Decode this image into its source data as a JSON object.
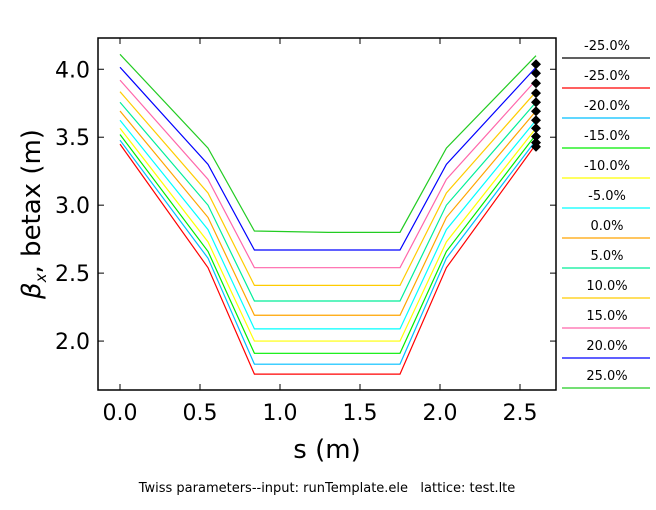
{
  "chart_data": {
    "type": "line",
    "title": "",
    "xlabel": "s (m)",
    "ylabel_symbol": "β",
    "ylabel_sub": "x",
    "ylabel_rest": ", betax (m)",
    "footer": "Twiss parameters--input: runTemplate.ele   lattice: test.lte",
    "xlim": [
      -0.1375,
      2.725
    ],
    "ylim": [
      1.64,
      4.23
    ],
    "xticks": [
      0.0,
      0.5,
      1.0,
      1.5,
      2.0,
      2.5
    ],
    "xtick_labels": [
      "0.0",
      "0.5",
      "1.0",
      "1.5",
      "2.0",
      "2.5"
    ],
    "yticks": [
      2.0,
      2.5,
      3.0,
      3.5,
      4.0
    ],
    "ytick_labels": [
      "2.0",
      "2.5",
      "3.0",
      "3.5",
      "4.0"
    ],
    "legend_position": "right-outside",
    "x": [
      0,
      0.55,
      0.84,
      1.3,
      1.75,
      2.04,
      2.6
    ],
    "series": [
      {
        "name": "-25.0%",
        "color": "#000000",
        "style": "markers",
        "x": [
          2.6,
          2.6,
          2.6,
          2.6,
          2.6,
          2.6,
          2.6,
          2.6,
          2.6,
          2.6,
          2.6
        ],
        "values": [
          4.037,
          3.971,
          3.897,
          3.824,
          3.757,
          3.691,
          3.625,
          3.566,
          3.505,
          3.46,
          3.43
        ]
      },
      {
        "name": "-25.0%",
        "color": "#ff0000",
        "values": [
          3.449,
          2.54,
          1.757,
          1.757,
          1.757,
          2.54,
          3.449
        ]
      },
      {
        "name": "-20.0%",
        "color": "#00bfff",
        "values": [
          3.478,
          2.61,
          1.83,
          1.83,
          1.83,
          2.61,
          3.478
        ]
      },
      {
        "name": "-15.0%",
        "color": "#00ee00",
        "values": [
          3.52,
          2.66,
          1.91,
          1.91,
          1.91,
          2.66,
          3.52
        ]
      },
      {
        "name": "-10.0%",
        "color": "#ffff00",
        "values": [
          3.566,
          2.73,
          2.0,
          2.0,
          2.0,
          2.73,
          3.566
        ]
      },
      {
        "name": "-5.0%",
        "color": "#00ffff",
        "values": [
          3.625,
          2.82,
          2.09,
          2.09,
          2.09,
          2.82,
          3.625
        ]
      },
      {
        "name": "0.0%",
        "color": "#ffa500",
        "values": [
          3.693,
          2.91,
          2.19,
          2.19,
          2.19,
          2.91,
          3.693
        ]
      },
      {
        "name": "5.0%",
        "color": "#00ee99",
        "values": [
          3.757,
          3.0,
          2.295,
          2.295,
          2.295,
          3.0,
          3.757
        ]
      },
      {
        "name": "10.0%",
        "color": "#ffcc00",
        "values": [
          3.835,
          3.09,
          2.41,
          2.41,
          2.41,
          3.09,
          3.835
        ]
      },
      {
        "name": "15.0%",
        "color": "#ff66aa",
        "values": [
          3.92,
          3.19,
          2.54,
          2.54,
          2.54,
          3.19,
          3.92
        ]
      },
      {
        "name": "20.0%",
        "color": "#0000ff",
        "values": [
          4.015,
          3.3,
          2.67,
          2.67,
          2.67,
          3.3,
          4.015
        ]
      },
      {
        "name": "25.0%",
        "color": "#22cc22",
        "values": [
          4.11,
          3.42,
          2.81,
          2.8,
          2.8,
          3.42,
          4.1
        ]
      }
    ]
  }
}
